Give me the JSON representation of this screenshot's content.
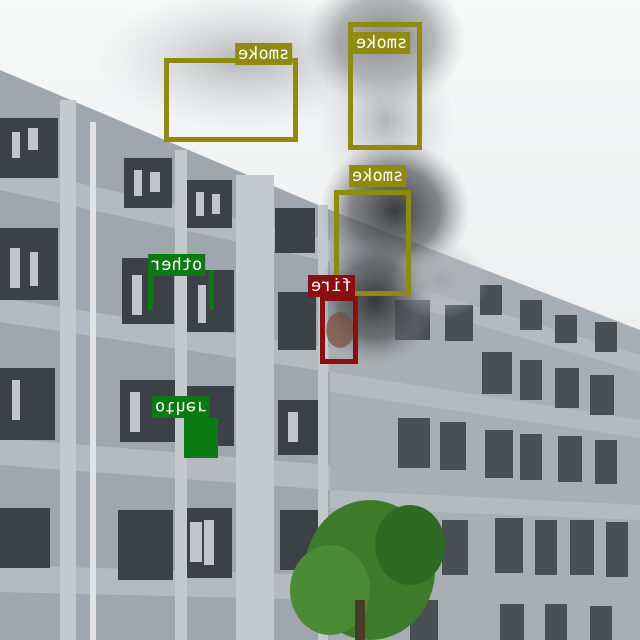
{
  "detections": [
    {
      "id": "smoke-1",
      "label": "smoke",
      "box_color": "#8f8a10",
      "label_bg": "#8f8a10",
      "label_fg": "#ffffff"
    },
    {
      "id": "smoke-2",
      "label": "smoke",
      "box_color": "#8f8a10",
      "label_bg": "#8f8a10",
      "label_fg": "#ffffff"
    },
    {
      "id": "smoke-3",
      "label": "smoke",
      "box_color": "#8f8a10",
      "label_bg": "#8f8a10",
      "label_fg": "#ffffff"
    },
    {
      "id": "fire-1",
      "label": "fire",
      "box_color": "#8b0f10",
      "label_bg": "#8b0f10",
      "label_fg": "#ffffff"
    },
    {
      "id": "other-1",
      "label": "other",
      "box_color": "#0b7a13",
      "label_bg": "#0b7a13",
      "label_fg": "#ffffff"
    },
    {
      "id": "other-2",
      "label": "other",
      "box_color": "#0b7a13",
      "label_bg": "#0b7a13",
      "label_fg": "#ffffff"
    }
  ],
  "scene": {
    "sky_color": "#f2f4f5",
    "smoke_color": "#3d3f41",
    "building_color": "#9aa3aa",
    "window_color": "#3b3f44",
    "tree_color": "#3e7a2c"
  }
}
